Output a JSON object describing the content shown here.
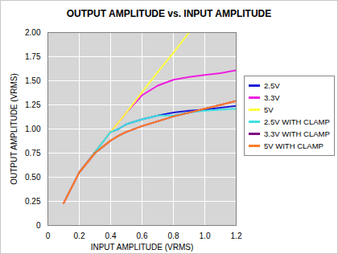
{
  "chart_data": {
    "type": "line",
    "title": "OUTPUT AMPLITUDE vs. INPUT AMPLITUDE",
    "x_label": "INPUT AMPLITUDE (VRMS)",
    "y_label": "OUTPUT AMPLITUDE (VRMS)",
    "x": [
      0.1,
      0.2,
      0.3,
      0.4,
      0.45,
      0.5,
      0.6,
      0.7,
      0.8,
      0.9,
      1.0,
      1.1,
      1.2
    ],
    "series": [
      {
        "name": "2.5V",
        "color": "#1c1cd8",
        "values": [
          null,
          0.55,
          0.76,
          0.97,
          1.0,
          1.05,
          1.1,
          1.14,
          1.17,
          1.19,
          1.2,
          1.22,
          1.24
        ]
      },
      {
        "name": "3.3V",
        "color": "#f01ee0",
        "values": [
          null,
          0.55,
          0.76,
          0.97,
          1.07,
          1.17,
          1.35,
          1.45,
          1.51,
          1.54,
          1.56,
          1.58,
          1.61
        ]
      },
      {
        "name": "5V",
        "color": "#ffff40",
        "values": [
          null,
          0.55,
          0.76,
          0.97,
          1.07,
          1.17,
          1.38,
          1.59,
          1.79,
          2.0,
          null,
          null,
          null
        ]
      },
      {
        "name": "2.5V WITH CLAMP",
        "color": "#40e0e0",
        "values": [
          null,
          0.55,
          0.76,
          0.97,
          1.0,
          1.05,
          1.1,
          1.14,
          1.14,
          1.17,
          1.19,
          1.2,
          1.21
        ]
      },
      {
        "name": "3.3V WITH CLAMP",
        "color": "#800080",
        "values": [
          0.23,
          0.55,
          0.75,
          0.88,
          0.93,
          0.97,
          1.03,
          1.08,
          1.13,
          1.17,
          1.21,
          1.25,
          1.29
        ]
      },
      {
        "name": "5V WITH CLAMP",
        "color": "#ff7f27",
        "values": [
          0.23,
          0.55,
          0.75,
          0.88,
          0.93,
          0.97,
          1.03,
          1.08,
          1.13,
          1.17,
          1.21,
          1.25,
          1.29
        ]
      }
    ],
    "xlim": [
      0,
      1.2
    ],
    "xticks": [
      0,
      0.2,
      0.4,
      0.6,
      0.8,
      {
        "value": 1,
        "label": "1.0"
      },
      1.2
    ],
    "ylim": [
      0,
      2
    ],
    "yticks": [
      0,
      0.25,
      {
        "value": 0.5,
        "label": "0.50"
      },
      0.75,
      {
        "value": 1,
        "label": "1.00"
      },
      1.25,
      {
        "value": 1.5,
        "label": "1.50"
      },
      1.75,
      {
        "value": 2,
        "label": "2.00"
      }
    ],
    "grid": true,
    "legend": "right"
  }
}
